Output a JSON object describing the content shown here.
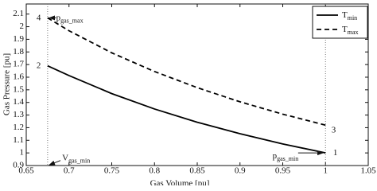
{
  "chart_data": {
    "type": "line",
    "xlabel": "Gas Volume [pu]",
    "ylabel": "Gas Pressure [pu]",
    "x": [
      0.675,
      0.7,
      0.75,
      0.8,
      0.85,
      0.9,
      0.95,
      1.0
    ],
    "series": [
      {
        "name": "T",
        "subscript": "min",
        "color": "#000000",
        "dash": "solid",
        "values": [
          1.69,
          1.613,
          1.47,
          1.348,
          1.243,
          1.152,
          1.071,
          1.0
        ]
      },
      {
        "name": "T",
        "subscript": "max",
        "color": "#000000",
        "dash": "dashed",
        "values": [
          2.07,
          1.968,
          1.793,
          1.645,
          1.517,
          1.405,
          1.307,
          1.22
        ]
      }
    ],
    "xlim": [
      0.65,
      1.05
    ],
    "ylim": [
      0.9,
      2.18
    ],
    "xticks": [
      0.65,
      0.7,
      0.75,
      0.8,
      0.85,
      0.9,
      0.95,
      1,
      1.05
    ],
    "yticks": [
      0.9,
      1,
      1.1,
      1.2,
      1.3,
      1.4,
      1.5,
      1.6,
      1.7,
      1.8,
      1.9,
      2,
      2.1
    ],
    "vlines": [
      0.675,
      1.0
    ],
    "legend": "upper right",
    "annotations": [
      {
        "text": "4"
      },
      {
        "text": "2"
      },
      {
        "text": "3"
      },
      {
        "text": "1"
      },
      {
        "text": "p",
        "sub": "gas_max"
      },
      {
        "text": "V",
        "sub": "gas_min"
      },
      {
        "text": "p",
        "sub": "gas_min"
      }
    ]
  }
}
